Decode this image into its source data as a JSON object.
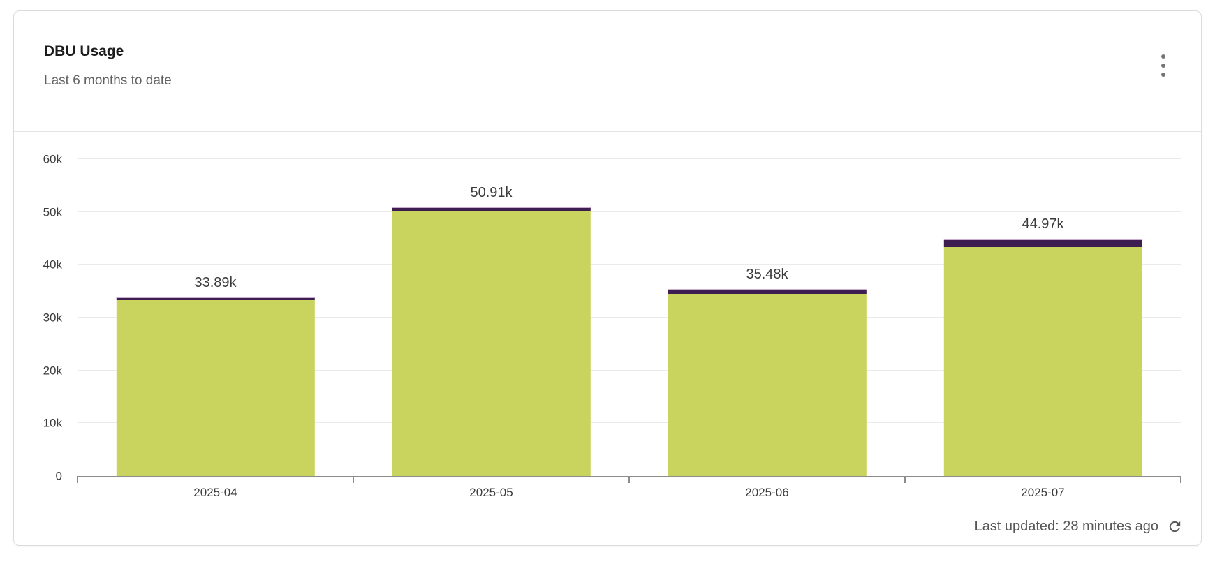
{
  "card": {
    "title": "DBU Usage",
    "subtitle": "Last 6 months to date",
    "menu_icon": "kebab-menu-icon",
    "footer": {
      "last_updated": "Last updated: 28 minutes ago",
      "refresh_icon": "refresh-icon"
    }
  },
  "chart_data": {
    "type": "bar",
    "stacked": true,
    "title": "DBU Usage",
    "subtitle": "Last 6 months to date",
    "categories": [
      "2025-04",
      "2025-05",
      "2025-06",
      "2025-07"
    ],
    "series": [
      {
        "name": "green",
        "color": "#c9d45e",
        "values": [
          33330,
          50220,
          34550,
          43320
        ]
      },
      {
        "name": "dark-purple",
        "color": "#3e1d50",
        "values": [
          460,
          600,
          730,
          1320
        ]
      },
      {
        "name": "lavender",
        "color": "#cbaed1",
        "values": [
          100,
          90,
          200,
          330
        ]
      }
    ],
    "totals": [
      33890,
      50910,
      35480,
      44970
    ],
    "total_labels": [
      "33.89k",
      "50.91k",
      "35.48k",
      "44.97k"
    ],
    "xlabel": "",
    "ylabel": "",
    "ylim": [
      0,
      60000
    ],
    "yticks": [
      {
        "value": 0,
        "label": "0"
      },
      {
        "value": 10000,
        "label": "10k"
      },
      {
        "value": 20000,
        "label": "20k"
      },
      {
        "value": 30000,
        "label": "30k"
      },
      {
        "value": 40000,
        "label": "40k"
      },
      {
        "value": 50000,
        "label": "50k"
      },
      {
        "value": 60000,
        "label": "60k"
      }
    ],
    "grid": true,
    "legend": "none"
  },
  "colors": {
    "axis": "#8c8c8c",
    "gridline": "#eaeaea",
    "label_text": "#3b3b3b",
    "muted_text": "#616161",
    "footer_text": "#565656",
    "card_border": "#dbdbdb"
  }
}
